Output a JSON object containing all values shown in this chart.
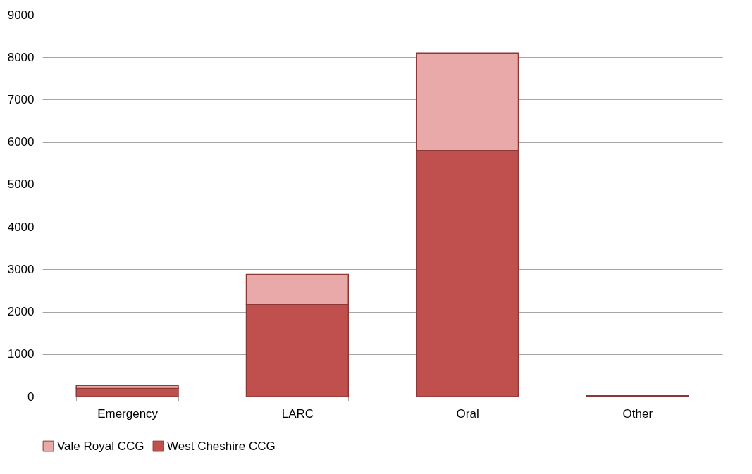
{
  "chart_data": {
    "type": "bar",
    "stacked": true,
    "categories": [
      "Emergency",
      "LARC",
      "Oral",
      "Other"
    ],
    "series": [
      {
        "name": "West Cheshire CCG",
        "color": "#c0504d",
        "values": [
          190,
          2170,
          5800,
          20
        ]
      },
      {
        "name": "Vale Royal CCG",
        "color": "#e8a9a8",
        "values": [
          70,
          710,
          2300,
          null
        ]
      }
    ],
    "ylim": [
      0,
      9000
    ],
    "yticks": [
      0,
      1000,
      2000,
      3000,
      4000,
      5000,
      6000,
      7000,
      8000,
      9000
    ],
    "grid": "y",
    "legend": "bottom"
  }
}
